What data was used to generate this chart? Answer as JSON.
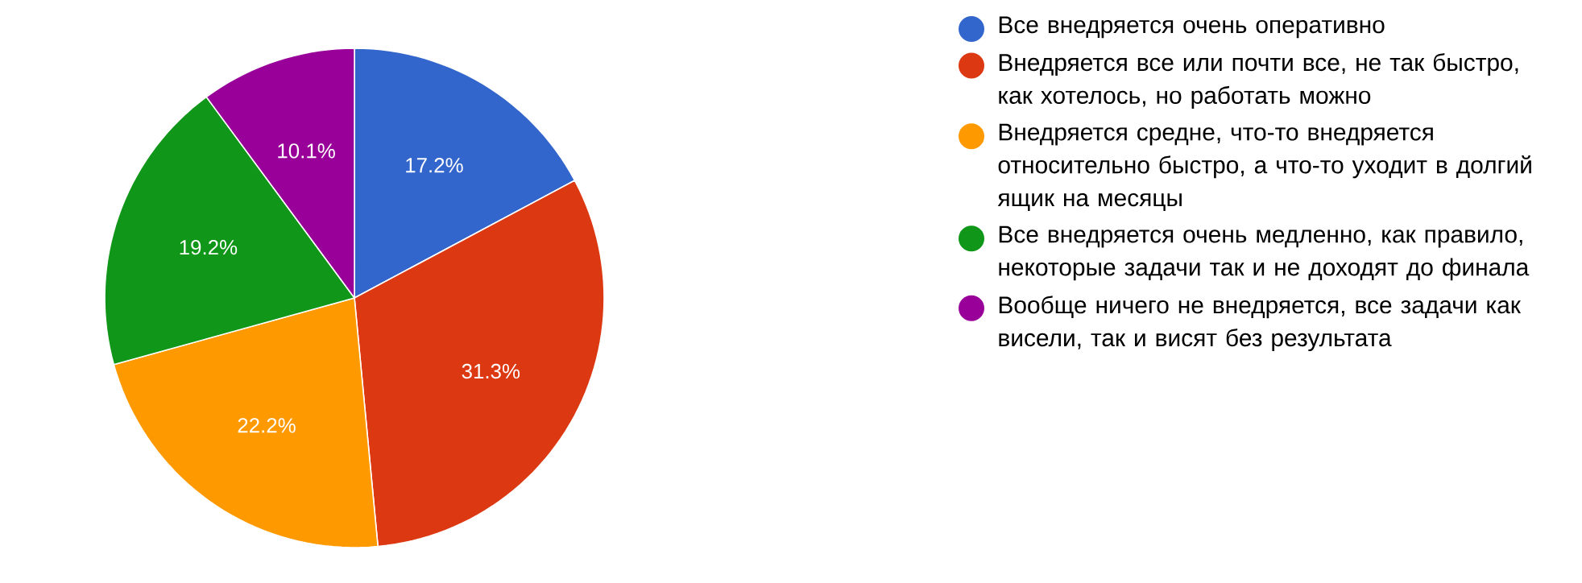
{
  "chart_data": {
    "type": "pie",
    "categories": [
      "Все внедряется очень оперативно",
      "Внедряется все или почти все, не так быстро, как хотелось, но работать можно",
      "Внедряется средне, что-то внедряется относительно быстро, а что-то уходит в долгий ящик на месяцы",
      "Все внедряется очень медленно, как правило, некоторые задачи так и не доходят до финала",
      "Вообще ничего не внедряется, все задачи как висели, так и висят без результата"
    ],
    "values": [
      17.2,
      31.3,
      22.2,
      19.2,
      10.1
    ],
    "colors": [
      "#3366cc",
      "#dc3912",
      "#ff9900",
      "#109618",
      "#990099"
    ],
    "value_labels": [
      "17.2%",
      "31.3%",
      "22.2%",
      "19.2%",
      "10.1%"
    ],
    "legend": "right"
  }
}
